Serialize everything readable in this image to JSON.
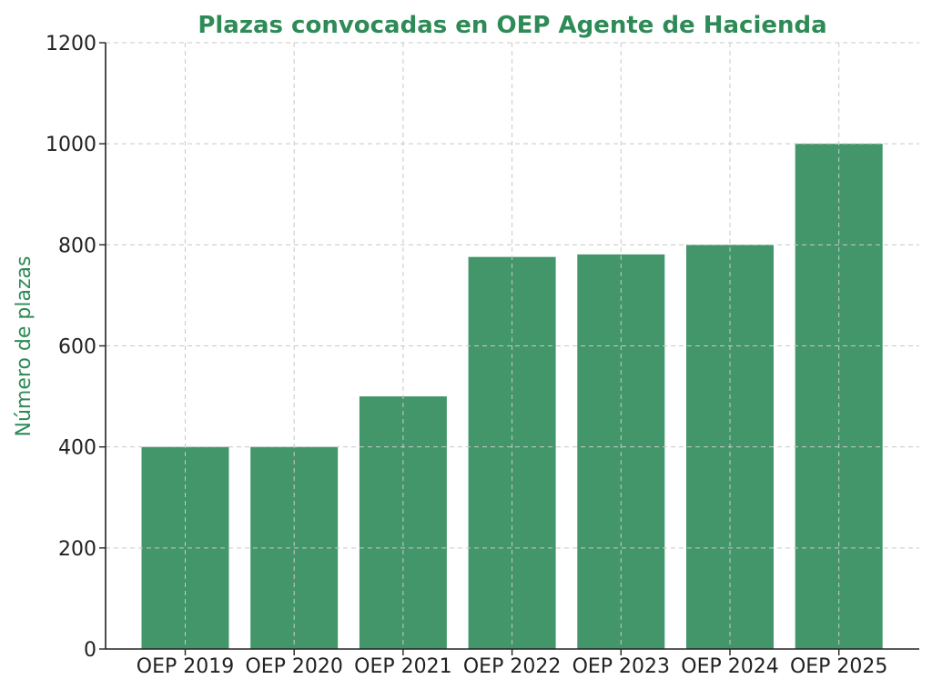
{
  "chart_data": {
    "type": "bar",
    "title": "Plazas convocadas en OEP Agente de Hacienda",
    "xlabel": "",
    "ylabel": "Número de plazas",
    "categories": [
      "OEP 2019",
      "OEP 2020",
      "OEP 2021",
      "OEP 2022",
      "OEP 2023",
      "OEP 2024",
      "OEP 2025"
    ],
    "values": [
      400,
      400,
      500,
      776,
      781,
      800,
      1000
    ],
    "ylim": [
      0,
      1200
    ],
    "yticks": [
      "0",
      "200",
      "400",
      "600",
      "800",
      "1000",
      "1200"
    ],
    "grid": true,
    "bar_color": "#43956a",
    "title_color": "#2e8b57",
    "ylabel_color": "#2e8b57"
  }
}
